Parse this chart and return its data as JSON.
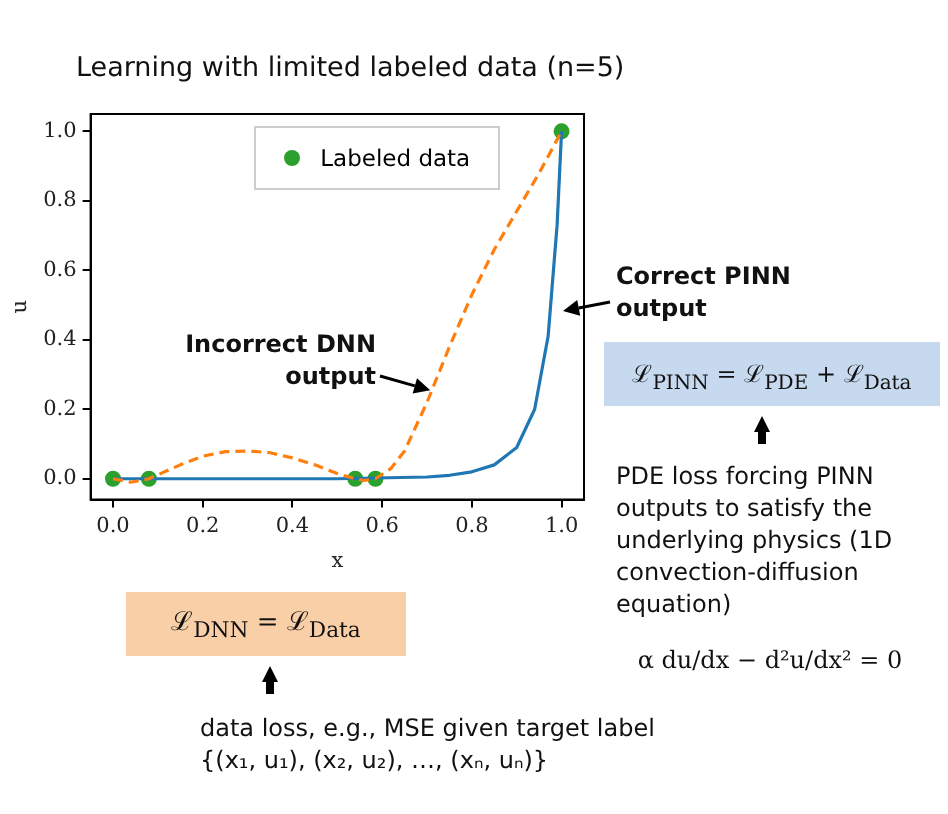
{
  "chart_data": {
    "type": "line",
    "title": "Learning with limited labeled data (n=5)",
    "xlabel": "x",
    "ylabel": "u",
    "xlim": [
      -0.05,
      1.05
    ],
    "ylim": [
      -0.06,
      1.05
    ],
    "xticks": [
      {
        "value": 0,
        "label": "0.0"
      },
      {
        "value": 0.2,
        "label": "0.2"
      },
      {
        "value": 0.4,
        "label": "0.4"
      },
      {
        "value": 0.6,
        "label": "0.6"
      },
      {
        "value": 0.8,
        "label": "0.8"
      },
      {
        "value": 1,
        "label": "1.0"
      }
    ],
    "yticks": [
      {
        "value": 0,
        "label": "0.0"
      },
      {
        "value": 0.2,
        "label": "0.2"
      },
      {
        "value": 0.4,
        "label": "0.4"
      },
      {
        "value": 0.6,
        "label": "0.6"
      },
      {
        "value": 0.8,
        "label": "0.8"
      },
      {
        "value": 1,
        "label": "1.0"
      }
    ],
    "grid": false,
    "legend": "top",
    "series": [
      {
        "color": "#ff7f0e",
        "line_style": "dashed",
        "marker": "none",
        "x": [
          0,
          0.04,
          0.08,
          0.15,
          0.2,
          0.25,
          0.3,
          0.35,
          0.4,
          0.45,
          0.5,
          0.54,
          0.56,
          0.585,
          0.62,
          0.65,
          0.7,
          0.75,
          0.8,
          0.85,
          0.9,
          0.95,
          1.0
        ],
        "values": [
          0,
          -0.01,
          0,
          0.04,
          0.065,
          0.078,
          0.08,
          0.075,
          0.06,
          0.04,
          0.015,
          0,
          -0.005,
          0,
          0.03,
          0.08,
          0.22,
          0.38,
          0.53,
          0.66,
          0.77,
          0.88,
          1.0
        ]
      },
      {
        "color": "#1f77b4",
        "line_style": "solid",
        "marker": "none",
        "x": [
          0,
          0.5,
          0.7,
          0.75,
          0.8,
          0.85,
          0.9,
          0.94,
          0.97,
          0.99,
          1.0
        ],
        "values": [
          0,
          0,
          0.005,
          0.01,
          0.02,
          0.04,
          0.09,
          0.2,
          0.41,
          0.73,
          1.0
        ]
      },
      {
        "type": "scatter",
        "name": "Labeled data",
        "color": "#2ca02c",
        "marker": "circle",
        "x": [
          0,
          0.08,
          0.54,
          0.585,
          1.0
        ],
        "values": [
          0,
          0,
          0,
          0,
          1
        ]
      }
    ],
    "annotations": [
      {
        "text": "Incorrect DNN output",
        "x": 0.72,
        "y": 0.25
      },
      {
        "text": "Correct PINN output",
        "x": 0.99,
        "y": 0.48
      },
      "ℒ$_{PINN}$ = ℒ$_{PDE}$ + ℒ$_{Data}$",
      "PDE loss forcing PINN outputs to satisfy the underlying physics (1D convection-diffusion equation)",
      "α du/dx − d²u/dx² = 0",
      "ℒ$_{DNN}$ = ℒ$_{Data}$",
      "data loss, e.g., MSE given target label {(x₁, u₁), (x₂, u₂), …, (xₙ, uₙ)}"
    ]
  }
}
